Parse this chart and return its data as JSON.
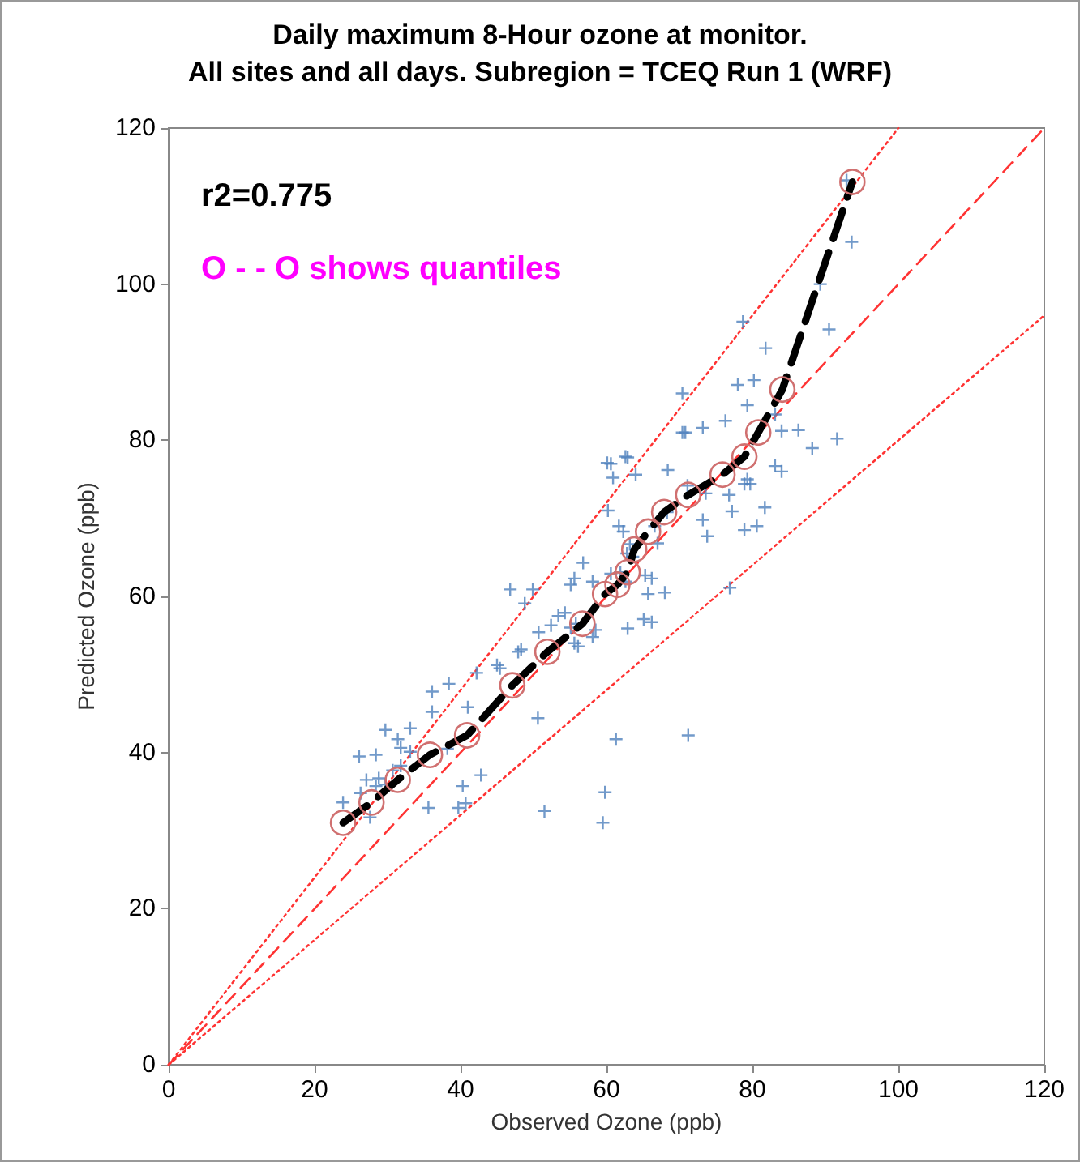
{
  "chart_data": {
    "type": "scatter",
    "title": "Daily maximum 8-Hour ozone at monitor.\nAll sites and all days. Subregion = TCEQ Run 1 (WRF)",
    "xlabel": "Observed Ozone (ppb)",
    "ylabel": "Predicted Ozone (ppb)",
    "annotations": [
      "r2=0.775",
      "O - - O shows quantiles"
    ],
    "xlim": [
      0,
      120
    ],
    "ylim": [
      0,
      120
    ],
    "xticks": [
      0,
      20,
      40,
      60,
      80,
      100,
      120
    ],
    "yticks": [
      0,
      20,
      40,
      60,
      80,
      100,
      120
    ],
    "grid": false,
    "series": [
      {
        "type": "line",
        "color": "#ff3333",
        "line_style": "dotted",
        "marker": "none",
        "x": [
          0,
          100
        ],
        "values": [
          0,
          120
        ]
      },
      {
        "type": "line",
        "color": "#ff3333",
        "line_style": "dashed",
        "marker": "none",
        "x": [
          0,
          120
        ],
        "values": [
          0,
          120
        ]
      },
      {
        "type": "line",
        "color": "#ff3333",
        "line_style": "dotted",
        "marker": "none",
        "x": [
          0,
          120
        ],
        "values": [
          0,
          96
        ]
      },
      {
        "color": "#4f81bd",
        "marker": "cross",
        "x": [
          23.9,
          26.1,
          28.4,
          29.7,
          33.1,
          31.4,
          31.8,
          33.1,
          26.3,
          27.1,
          28.8,
          28.4,
          27.6,
          29.7,
          31.8,
          30.7,
          36.1,
          38.4,
          36.1,
          41.0,
          42.2,
          38.2,
          35.6,
          40.3,
          40.7,
          39.7,
          42.8,
          45.0,
          45.4,
          47.9,
          48.3,
          46.8,
          49.9,
          48.8,
          50.7,
          52.4,
          53.4,
          54.3,
          55.1,
          55.8,
          55.6,
          56.1,
          58.5,
          58.1,
          50.6,
          61.3,
          51.5,
          59.8,
          59.5,
          71.2,
          76.9,
          55.1,
          55.6,
          56.8,
          58.1,
          60.6,
          61.9,
          62.6,
          63.2,
          62.8,
          63.6,
          61.7,
          62.3,
          60.2,
          60.9,
          60.1,
          60.6,
          62.6,
          62.9,
          64.0,
          65.3,
          66.2,
          65.7,
          68.0,
          62.9,
          65.1,
          66.2,
          66.6,
          67.0,
          68.4,
          68.3,
          70.4,
          70.8,
          73.2,
          70.4,
          71.1,
          73.6,
          73.2,
          73.8,
          76.8,
          77.2,
          78.9,
          80.6,
          81.7,
          78.9,
          79.7,
          79.3,
          76.3,
          78.0,
          80.2,
          79.3,
          81.8,
          78.7,
          84.0,
          86.3,
          88.2,
          91.6,
          83.1,
          84.0,
          90.5,
          89.3,
          93.6,
          92.9,
          83.1
        ],
        "values": [
          33.6,
          39.5,
          39.7,
          42.9,
          43.1,
          41.7,
          40.6,
          40.1,
          34.8,
          36.5,
          36.7,
          35.7,
          31.7,
          35.9,
          38.3,
          37.7,
          47.8,
          48.8,
          45.2,
          45.8,
          50.2,
          40.5,
          32.9,
          35.7,
          33.5,
          32.9,
          37.1,
          51.2,
          50.8,
          52.9,
          53.2,
          60.9,
          60.9,
          59.1,
          55.4,
          56.3,
          57.5,
          57.9,
          56.0,
          56.5,
          54.0,
          53.6,
          55.7,
          54.8,
          44.4,
          41.7,
          32.5,
          34.9,
          31.0,
          42.2,
          61.1,
          61.5,
          62.3,
          64.3,
          61.9,
          62.9,
          63.1,
          61.9,
          66.7,
          65.5,
          65.1,
          69.0,
          68.3,
          71.0,
          75.2,
          77.1,
          77.0,
          77.9,
          77.8,
          75.6,
          62.7,
          62.3,
          60.3,
          60.5,
          55.9,
          57.1,
          56.7,
          69.0,
          66.8,
          76.2,
          70.8,
          81.0,
          81.0,
          81.6,
          86.0,
          74.2,
          73.2,
          69.8,
          67.7,
          73.0,
          70.9,
          68.5,
          69.0,
          71.4,
          74.4,
          74.4,
          75.0,
          82.5,
          87.1,
          87.7,
          84.5,
          91.8,
          95.2,
          81.2,
          81.3,
          79.0,
          80.2,
          76.7,
          76.0,
          94.2,
          100.0,
          105.4,
          113.3,
          83.3
        ]
      },
      {
        "type": "line",
        "color": "#000000",
        "line_style": "dashed",
        "marker": "circle",
        "x": [
          23.9,
          27.8,
          31.4,
          35.8,
          40.9,
          47.1,
          51.9,
          56.7,
          59.8,
          61.5,
          62.9,
          63.8,
          65.7,
          67.9,
          71.2,
          75.9,
          78.9,
          80.8,
          84.1,
          93.7
        ],
        "values": [
          31.0,
          33.6,
          36.5,
          39.7,
          42.2,
          48.6,
          52.9,
          56.5,
          60.3,
          61.5,
          63.1,
          66.0,
          68.3,
          70.8,
          73.0,
          75.6,
          77.9,
          81.0,
          86.5,
          113.1
        ]
      }
    ]
  }
}
